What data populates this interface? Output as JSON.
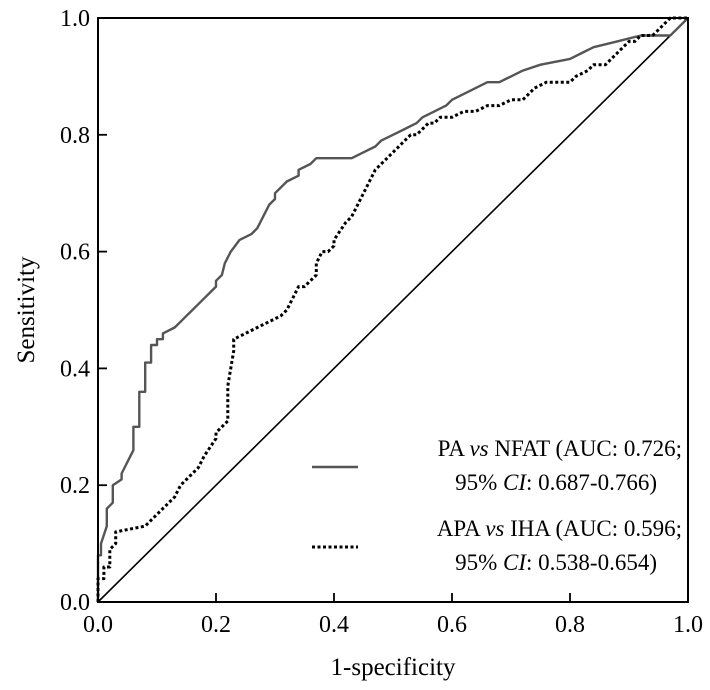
{
  "chart_data": {
    "type": "line",
    "title": "",
    "xlabel": "1-specificity",
    "ylabel": "Sensitivity",
    "xlim": [
      0,
      1
    ],
    "ylim": [
      0,
      1
    ],
    "xticks": [
      "0.0",
      "0.2",
      "0.4",
      "0.6",
      "0.8",
      "1.0"
    ],
    "yticks": [
      "0.0",
      "0.2",
      "0.4",
      "0.6",
      "0.8",
      "1.0"
    ],
    "legend_position": "bottom-right",
    "reference_line": {
      "name": "chance diagonal",
      "x": [
        0,
        1
      ],
      "y": [
        0,
        1
      ]
    },
    "series": [
      {
        "name": "PA vs NFAT",
        "style": "solid",
        "color": "#555555",
        "legend": {
          "line1_prefix": "PA ",
          "line1_italic": "vs",
          "line1_suffix": " NFAT (AUC: 0.726;",
          "line2_prefix": "95% ",
          "line2_italic": "CI",
          "line2_suffix": ": 0.687-0.766)"
        },
        "x": [
          0,
          0,
          0.005,
          0.005,
          0.015,
          0.015,
          0.025,
          0.025,
          0.04,
          0.04,
          0.06,
          0.06,
          0.07,
          0.07,
          0.08,
          0.08,
          0.09,
          0.09,
          0.1,
          0.1,
          0.11,
          0.11,
          0.13,
          0.14,
          0.15,
          0.16,
          0.17,
          0.18,
          0.19,
          0.2,
          0.2,
          0.21,
          0.215,
          0.22,
          0.225,
          0.24,
          0.26,
          0.27,
          0.28,
          0.29,
          0.3,
          0.3,
          0.31,
          0.32,
          0.34,
          0.34,
          0.36,
          0.37,
          0.43,
          0.45,
          0.47,
          0.48,
          0.5,
          0.52,
          0.54,
          0.55,
          0.57,
          0.59,
          0.6,
          0.62,
          0.64,
          0.66,
          0.68,
          0.7,
          0.72,
          0.75,
          0.8,
          0.82,
          0.84,
          0.88,
          0.92,
          0.95,
          0.97,
          0.98,
          1.0
        ],
        "y": [
          0,
          0.08,
          0.08,
          0.1,
          0.13,
          0.16,
          0.17,
          0.2,
          0.21,
          0.22,
          0.26,
          0.3,
          0.3,
          0.36,
          0.36,
          0.41,
          0.41,
          0.44,
          0.44,
          0.45,
          0.45,
          0.46,
          0.47,
          0.48,
          0.49,
          0.5,
          0.51,
          0.52,
          0.53,
          0.54,
          0.55,
          0.56,
          0.58,
          0.59,
          0.6,
          0.62,
          0.63,
          0.64,
          0.66,
          0.68,
          0.69,
          0.7,
          0.71,
          0.72,
          0.73,
          0.74,
          0.75,
          0.76,
          0.76,
          0.77,
          0.78,
          0.79,
          0.8,
          0.81,
          0.82,
          0.83,
          0.84,
          0.85,
          0.86,
          0.87,
          0.88,
          0.89,
          0.89,
          0.9,
          0.91,
          0.92,
          0.93,
          0.94,
          0.95,
          0.96,
          0.97,
          0.97,
          0.97,
          0.98,
          1.0
        ]
      },
      {
        "name": "APA vs IHA",
        "style": "dotted",
        "color": "#000000",
        "legend": {
          "line1_prefix": "APA ",
          "line1_italic": "vs",
          "line1_suffix": " IHA (AUC: 0.596;",
          "line2_prefix": "95% ",
          "line2_italic": "CI",
          "line2_suffix": ": 0.538-0.654)"
        },
        "x": [
          0,
          0,
          0.01,
          0.01,
          0.02,
          0.02,
          0.03,
          0.03,
          0.08,
          0.09,
          0.1,
          0.12,
          0.13,
          0.14,
          0.15,
          0.16,
          0.17,
          0.18,
          0.2,
          0.2,
          0.21,
          0.22,
          0.22,
          0.23,
          0.23,
          0.25,
          0.27,
          0.29,
          0.31,
          0.32,
          0.33,
          0.34,
          0.35,
          0.36,
          0.37,
          0.37,
          0.38,
          0.39,
          0.4,
          0.4,
          0.42,
          0.43,
          0.44,
          0.45,
          0.46,
          0.47,
          0.48,
          0.49,
          0.5,
          0.51,
          0.52,
          0.53,
          0.54,
          0.55,
          0.56,
          0.57,
          0.58,
          0.6,
          0.62,
          0.64,
          0.66,
          0.68,
          0.7,
          0.72,
          0.74,
          0.76,
          0.8,
          0.81,
          0.83,
          0.84,
          0.86,
          0.87,
          0.88,
          0.89,
          0.9,
          0.91,
          0.92,
          0.94,
          0.95,
          0.96,
          0.97,
          0.98,
          1.0
        ],
        "y": [
          0,
          0.04,
          0.04,
          0.06,
          0.06,
          0.09,
          0.1,
          0.12,
          0.13,
          0.14,
          0.15,
          0.17,
          0.18,
          0.2,
          0.21,
          0.22,
          0.23,
          0.25,
          0.28,
          0.29,
          0.3,
          0.31,
          0.37,
          0.43,
          0.45,
          0.46,
          0.47,
          0.48,
          0.49,
          0.5,
          0.52,
          0.54,
          0.54,
          0.55,
          0.56,
          0.58,
          0.6,
          0.6,
          0.61,
          0.62,
          0.65,
          0.66,
          0.68,
          0.7,
          0.72,
          0.74,
          0.75,
          0.76,
          0.77,
          0.78,
          0.79,
          0.8,
          0.8,
          0.81,
          0.82,
          0.82,
          0.83,
          0.83,
          0.84,
          0.84,
          0.85,
          0.85,
          0.86,
          0.86,
          0.88,
          0.89,
          0.89,
          0.9,
          0.91,
          0.92,
          0.92,
          0.93,
          0.94,
          0.95,
          0.96,
          0.96,
          0.97,
          0.97,
          0.98,
          0.99,
          1.0,
          1.0,
          1.0
        ]
      }
    ]
  }
}
